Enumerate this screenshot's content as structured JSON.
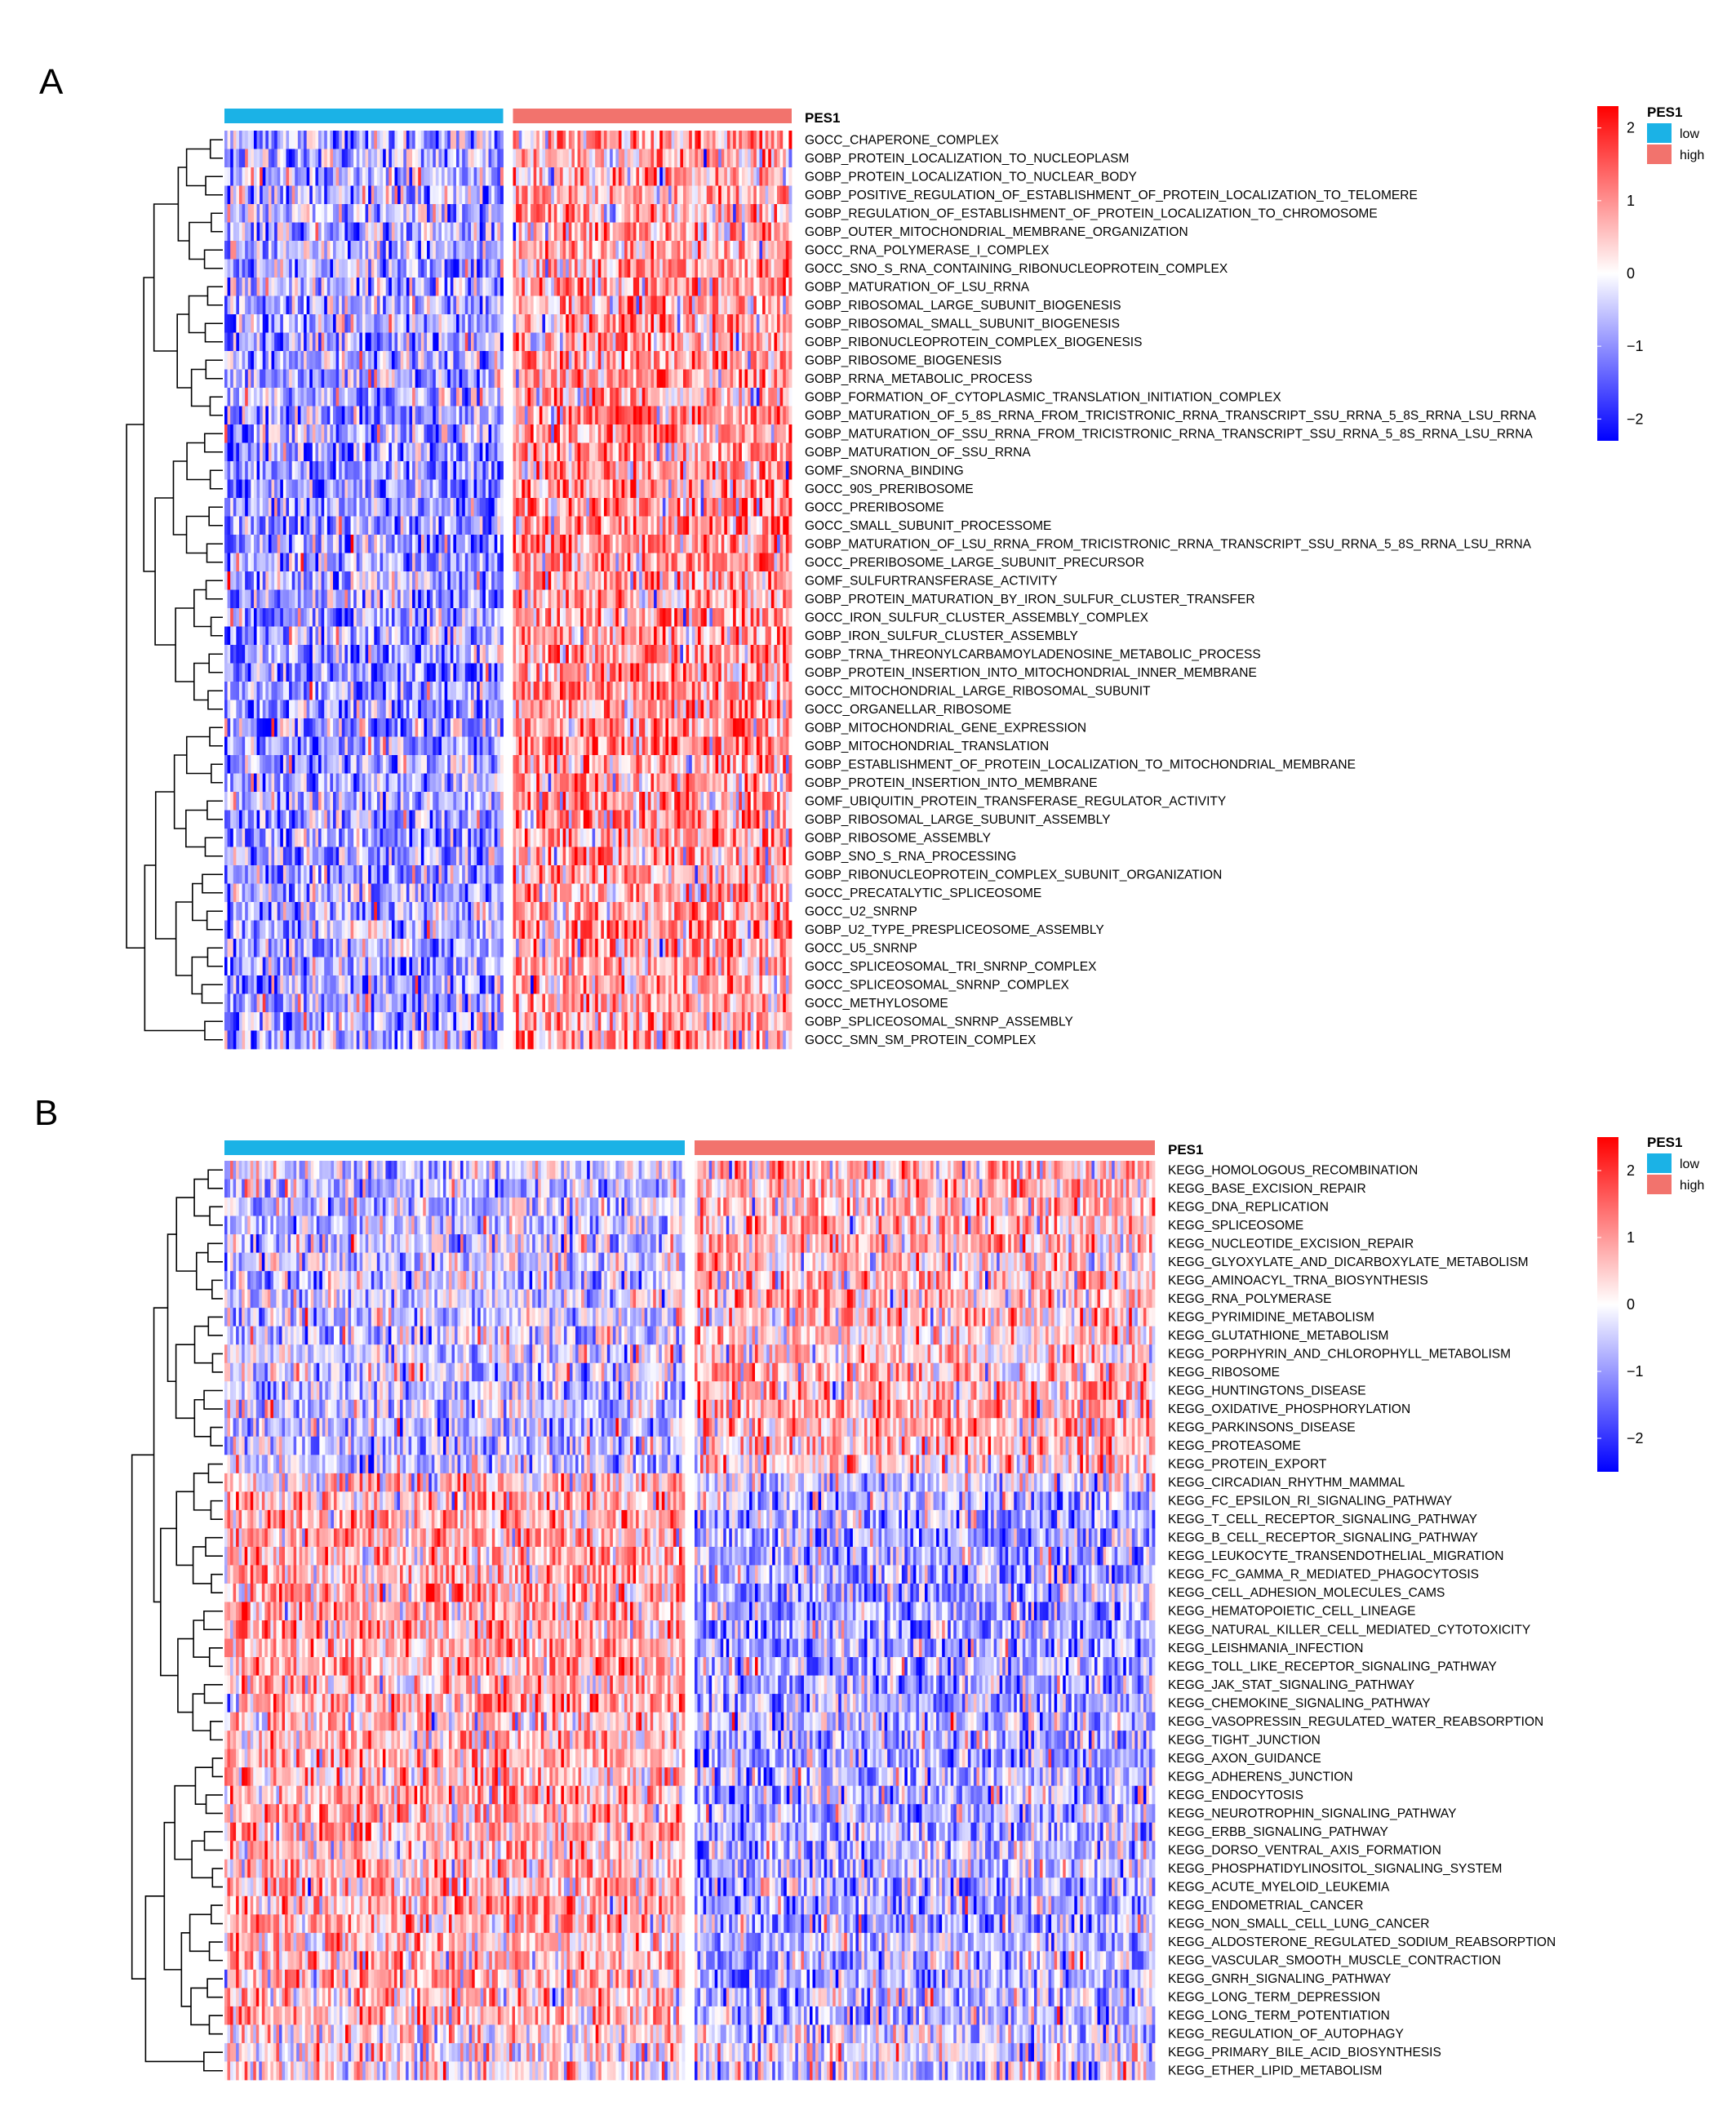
{
  "chart_data": [
    {
      "type": "heatmap",
      "panel_label": "A",
      "annotation_title": "PES1",
      "groups": [
        {
          "name": "low",
          "color": "#1bb2e6",
          "fraction": 0.5
        },
        {
          "name": "high",
          "color": "#f2736d",
          "fraction": 0.5
        }
      ],
      "legend": {
        "title": "PES1",
        "items": [
          "low",
          "high"
        ]
      },
      "color_scale": {
        "min": -2.3,
        "max": 2.3,
        "ticks": [
          2,
          1,
          0,
          -1,
          -2
        ],
        "low_color": "#0000ff",
        "mid_color": "#ffffff",
        "high_color": "#ff0000"
      },
      "rows": [
        {
          "label": "GOCC_CHAPERONE_COMPLEX",
          "low_mean": -0.45,
          "high_mean": 0.45
        },
        {
          "label": "GOBP_PROTEIN_LOCALIZATION_TO_NUCLEOPLASM",
          "low_mean": -0.45,
          "high_mean": 0.45
        },
        {
          "label": "GOBP_PROTEIN_LOCALIZATION_TO_NUCLEAR_BODY",
          "low_mean": -0.45,
          "high_mean": 0.45
        },
        {
          "label": "GOBP_POSITIVE_REGULATION_OF_ESTABLISHMENT_OF_PROTEIN_LOCALIZATION_TO_TELOMERE",
          "low_mean": -0.45,
          "high_mean": 0.45
        },
        {
          "label": "GOBP_REGULATION_OF_ESTABLISHMENT_OF_PROTEIN_LOCALIZATION_TO_CHROMOSOME",
          "low_mean": -0.45,
          "high_mean": 0.45
        },
        {
          "label": "GOBP_OUTER_MITOCHONDRIAL_MEMBRANE_ORGANIZATION",
          "low_mean": -0.4,
          "high_mean": 0.4
        },
        {
          "label": "GOCC_RNA_POLYMERASE_I_COMPLEX",
          "low_mean": -0.5,
          "high_mean": 0.5
        },
        {
          "label": "GOCC_SNO_S_RNA_CONTAINING_RIBONUCLEOPROTEIN_COMPLEX",
          "low_mean": -0.5,
          "high_mean": 0.5
        },
        {
          "label": "GOBP_MATURATION_OF_LSU_RRNA",
          "low_mean": -0.5,
          "high_mean": 0.5
        },
        {
          "label": "GOBP_RIBOSOMAL_LARGE_SUBUNIT_BIOGENESIS",
          "low_mean": -0.5,
          "high_mean": 0.5
        },
        {
          "label": "GOBP_RIBOSOMAL_SMALL_SUBUNIT_BIOGENESIS",
          "low_mean": -0.5,
          "high_mean": 0.5
        },
        {
          "label": "GOBP_RIBONUCLEOPROTEIN_COMPLEX_BIOGENESIS",
          "low_mean": -0.5,
          "high_mean": 0.5
        },
        {
          "label": "GOBP_RIBOSOME_BIOGENESIS",
          "low_mean": -0.5,
          "high_mean": 0.5
        },
        {
          "label": "GOBP_RRNA_METABOLIC_PROCESS",
          "low_mean": -0.5,
          "high_mean": 0.5
        },
        {
          "label": "GOBP_FORMATION_OF_CYTOPLASMIC_TRANSLATION_INITIATION_COMPLEX",
          "low_mean": -0.45,
          "high_mean": 0.45
        },
        {
          "label": "GOBP_MATURATION_OF_5_8S_RRNA_FROM_TRICISTRONIC_RRNA_TRANSCRIPT_SSU_RRNA_5_8S_RRNA_LSU_RRNA",
          "low_mean": -0.6,
          "high_mean": 0.6
        },
        {
          "label": "GOBP_MATURATION_OF_SSU_RRNA_FROM_TRICISTRONIC_RRNA_TRANSCRIPT_SSU_RRNA_5_8S_RRNA_LSU_RRNA",
          "low_mean": -0.6,
          "high_mean": 0.6
        },
        {
          "label": "GOBP_MATURATION_OF_SSU_RRNA",
          "low_mean": -0.6,
          "high_mean": 0.6
        },
        {
          "label": "GOMF_SNORNA_BINDING",
          "low_mean": -0.6,
          "high_mean": 0.6
        },
        {
          "label": "GOCC_90S_PRERIBOSOME",
          "low_mean": -0.6,
          "high_mean": 0.6
        },
        {
          "label": "GOCC_PRERIBOSOME",
          "low_mean": -0.6,
          "high_mean": 0.6
        },
        {
          "label": "GOCC_SMALL_SUBUNIT_PROCESSOME",
          "low_mean": -0.6,
          "high_mean": 0.6
        },
        {
          "label": "GOBP_MATURATION_OF_LSU_RRNA_FROM_TRICISTRONIC_RRNA_TRANSCRIPT_SSU_RRNA_5_8S_RRNA_LSU_RRNA",
          "low_mean": -0.6,
          "high_mean": 0.6
        },
        {
          "label": "GOCC_PRERIBOSOME_LARGE_SUBUNIT_PRECURSOR",
          "low_mean": -0.6,
          "high_mean": 0.6
        },
        {
          "label": "GOMF_SULFURTRANSFERASE_ACTIVITY",
          "low_mean": -0.5,
          "high_mean": 0.5
        },
        {
          "label": "GOBP_PROTEIN_MATURATION_BY_IRON_SULFUR_CLUSTER_TRANSFER",
          "low_mean": -0.5,
          "high_mean": 0.5
        },
        {
          "label": "GOCC_IRON_SULFUR_CLUSTER_ASSEMBLY_COMPLEX",
          "low_mean": -0.5,
          "high_mean": 0.5
        },
        {
          "label": "GOBP_IRON_SULFUR_CLUSTER_ASSEMBLY",
          "low_mean": -0.5,
          "high_mean": 0.5
        },
        {
          "label": "GOBP_TRNA_THREONYLCARBAMOYLADENOSINE_METABOLIC_PROCESS",
          "low_mean": -0.55,
          "high_mean": 0.55
        },
        {
          "label": "GOBP_PROTEIN_INSERTION_INTO_MITOCHONDRIAL_INNER_MEMBRANE",
          "low_mean": -0.6,
          "high_mean": 0.6
        },
        {
          "label": "GOCC_MITOCHONDRIAL_LARGE_RIBOSOMAL_SUBUNIT",
          "low_mean": -0.65,
          "high_mean": 0.65
        },
        {
          "label": "GOCC_ORGANELLAR_RIBOSOME",
          "low_mean": -0.65,
          "high_mean": 0.65
        },
        {
          "label": "GOBP_MITOCHONDRIAL_GENE_EXPRESSION",
          "low_mean": -0.65,
          "high_mean": 0.65
        },
        {
          "label": "GOBP_MITOCHONDRIAL_TRANSLATION",
          "low_mean": -0.65,
          "high_mean": 0.65
        },
        {
          "label": "GOBP_ESTABLISHMENT_OF_PROTEIN_LOCALIZATION_TO_MITOCHONDRIAL_MEMBRANE",
          "low_mean": -0.55,
          "high_mean": 0.55
        },
        {
          "label": "GOBP_PROTEIN_INSERTION_INTO_MEMBRANE",
          "low_mean": -0.5,
          "high_mean": 0.5
        },
        {
          "label": "GOMF_UBIQUITIN_PROTEIN_TRANSFERASE_REGULATOR_ACTIVITY",
          "low_mean": -0.45,
          "high_mean": 0.45
        },
        {
          "label": "GOBP_RIBOSOMAL_LARGE_SUBUNIT_ASSEMBLY",
          "low_mean": -0.55,
          "high_mean": 0.55
        },
        {
          "label": "GOBP_RIBOSOME_ASSEMBLY",
          "low_mean": -0.55,
          "high_mean": 0.55
        },
        {
          "label": "GOBP_SNO_S_RNA_PROCESSING",
          "low_mean": -0.5,
          "high_mean": 0.5
        },
        {
          "label": "GOBP_RIBONUCLEOPROTEIN_COMPLEX_SUBUNIT_ORGANIZATION",
          "low_mean": -0.5,
          "high_mean": 0.5
        },
        {
          "label": "GOCC_PRECATALYTIC_SPLICEOSOME",
          "low_mean": -0.5,
          "high_mean": 0.5
        },
        {
          "label": "GOCC_U2_SNRNP",
          "low_mean": -0.5,
          "high_mean": 0.5
        },
        {
          "label": "GOBP_U2_TYPE_PRESPLICEOSOME_ASSEMBLY",
          "low_mean": -0.5,
          "high_mean": 0.5
        },
        {
          "label": "GOCC_U5_SNRNP",
          "low_mean": -0.5,
          "high_mean": 0.5
        },
        {
          "label": "GOCC_SPLICEOSOMAL_TRI_SNRNP_COMPLEX",
          "low_mean": -0.5,
          "high_mean": 0.5
        },
        {
          "label": "GOCC_SPLICEOSOMAL_SNRNP_COMPLEX",
          "low_mean": -0.5,
          "high_mean": 0.5
        },
        {
          "label": "GOCC_METHYLOSOME",
          "low_mean": -0.45,
          "high_mean": 0.45
        },
        {
          "label": "GOBP_SPLICEOSOMAL_SNRNP_ASSEMBLY",
          "low_mean": -0.45,
          "high_mean": 0.45
        },
        {
          "label": "GOCC_SMN_SM_PROTEIN_COMPLEX",
          "low_mean": -0.45,
          "high_mean": 0.45
        }
      ]
    },
    {
      "type": "heatmap",
      "panel_label": "B",
      "annotation_title": "PES1",
      "groups": [
        {
          "name": "low",
          "color": "#1bb2e6",
          "fraction": 0.5
        },
        {
          "name": "high",
          "color": "#f2736d",
          "fraction": 0.5
        }
      ],
      "legend": {
        "title": "PES1",
        "items": [
          "low",
          "high"
        ]
      },
      "color_scale": {
        "min": -2.5,
        "max": 2.5,
        "ticks": [
          2,
          1,
          0,
          -1,
          -2
        ],
        "low_color": "#0000ff",
        "mid_color": "#ffffff",
        "high_color": "#ff0000"
      },
      "rows": [
        {
          "label": "KEGG_HOMOLOGOUS_RECOMBINATION",
          "low_mean": -0.35,
          "high_mean": 0.4
        },
        {
          "label": "KEGG_BASE_EXCISION_REPAIR",
          "low_mean": -0.35,
          "high_mean": 0.4
        },
        {
          "label": "KEGG_DNA_REPLICATION",
          "low_mean": -0.35,
          "high_mean": 0.4
        },
        {
          "label": "KEGG_SPLICEOSOME",
          "low_mean": -0.35,
          "high_mean": 0.4
        },
        {
          "label": "KEGG_NUCLEOTIDE_EXCISION_REPAIR",
          "low_mean": -0.3,
          "high_mean": 0.35
        },
        {
          "label": "KEGG_GLYOXYLATE_AND_DICARBOXYLATE_METABOLISM",
          "low_mean": -0.25,
          "high_mean": 0.3
        },
        {
          "label": "KEGG_AMINOACYL_TRNA_BIOSYNTHESIS",
          "low_mean": -0.3,
          "high_mean": 0.35
        },
        {
          "label": "KEGG_RNA_POLYMERASE",
          "low_mean": -0.3,
          "high_mean": 0.35
        },
        {
          "label": "KEGG_PYRIMIDINE_METABOLISM",
          "low_mean": -0.3,
          "high_mean": 0.35
        },
        {
          "label": "KEGG_GLUTATHIONE_METABOLISM",
          "low_mean": -0.25,
          "high_mean": 0.3
        },
        {
          "label": "KEGG_PORPHYRIN_AND_CHLOROPHYLL_METABOLISM",
          "low_mean": -0.25,
          "high_mean": 0.3
        },
        {
          "label": "KEGG_RIBOSOME",
          "low_mean": -0.35,
          "high_mean": 0.45
        },
        {
          "label": "KEGG_HUNTINGTONS_DISEASE",
          "low_mean": -0.35,
          "high_mean": 0.45
        },
        {
          "label": "KEGG_OXIDATIVE_PHOSPHORYLATION",
          "low_mean": -0.4,
          "high_mean": 0.5
        },
        {
          "label": "KEGG_PARKINSONS_DISEASE",
          "low_mean": -0.4,
          "high_mean": 0.5
        },
        {
          "label": "KEGG_PROTEASOME",
          "low_mean": -0.35,
          "high_mean": 0.4
        },
        {
          "label": "KEGG_PROTEIN_EXPORT",
          "low_mean": -0.3,
          "high_mean": 0.35
        },
        {
          "label": "KEGG_CIRCADIAN_RHYTHM_MAMMAL",
          "low_mean": 0.25,
          "high_mean": -0.3
        },
        {
          "label": "KEGG_FC_EPSILON_RI_SIGNALING_PATHWAY",
          "low_mean": 0.45,
          "high_mean": -0.5
        },
        {
          "label": "KEGG_T_CELL_RECEPTOR_SIGNALING_PATHWAY",
          "low_mean": 0.5,
          "high_mean": -0.55
        },
        {
          "label": "KEGG_B_CELL_RECEPTOR_SIGNALING_PATHWAY",
          "low_mean": 0.5,
          "high_mean": -0.55
        },
        {
          "label": "KEGG_LEUKOCYTE_TRANSENDOTHELIAL_MIGRATION",
          "low_mean": 0.5,
          "high_mean": -0.55
        },
        {
          "label": "KEGG_FC_GAMMA_R_MEDIATED_PHAGOCYTOSIS",
          "low_mean": 0.5,
          "high_mean": -0.55
        },
        {
          "label": "KEGG_CELL_ADHESION_MOLECULES_CAMS",
          "low_mean": 0.55,
          "high_mean": -0.6
        },
        {
          "label": "KEGG_HEMATOPOIETIC_CELL_LINEAGE",
          "low_mean": 0.55,
          "high_mean": -0.6
        },
        {
          "label": "KEGG_NATURAL_KILLER_CELL_MEDIATED_CYTOTOXICITY",
          "low_mean": 0.55,
          "high_mean": -0.6
        },
        {
          "label": "KEGG_LEISHMANIA_INFECTION",
          "low_mean": 0.55,
          "high_mean": -0.6
        },
        {
          "label": "KEGG_TOLL_LIKE_RECEPTOR_SIGNALING_PATHWAY",
          "low_mean": 0.55,
          "high_mean": -0.6
        },
        {
          "label": "KEGG_JAK_STAT_SIGNALING_PATHWAY",
          "low_mean": 0.5,
          "high_mean": -0.55
        },
        {
          "label": "KEGG_CHEMOKINE_SIGNALING_PATHWAY",
          "low_mean": 0.55,
          "high_mean": -0.6
        },
        {
          "label": "KEGG_VASOPRESSIN_REGULATED_WATER_REABSORPTION",
          "low_mean": 0.3,
          "high_mean": -0.35
        },
        {
          "label": "KEGG_TIGHT_JUNCTION",
          "low_mean": 0.4,
          "high_mean": -0.45
        },
        {
          "label": "KEGG_AXON_GUIDANCE",
          "low_mean": 0.45,
          "high_mean": -0.5
        },
        {
          "label": "KEGG_ADHERENS_JUNCTION",
          "low_mean": 0.45,
          "high_mean": -0.5
        },
        {
          "label": "KEGG_ENDOCYTOSIS",
          "low_mean": 0.45,
          "high_mean": -0.5
        },
        {
          "label": "KEGG_NEUROTROPHIN_SIGNALING_PATHWAY",
          "low_mean": 0.45,
          "high_mean": -0.5
        },
        {
          "label": "KEGG_ERBB_SIGNALING_PATHWAY",
          "low_mean": 0.45,
          "high_mean": -0.5
        },
        {
          "label": "KEGG_DORSO_VENTRAL_AXIS_FORMATION",
          "low_mean": 0.35,
          "high_mean": -0.4
        },
        {
          "label": "KEGG_PHOSPHATIDYLINOSITOL_SIGNALING_SYSTEM",
          "low_mean": 0.4,
          "high_mean": -0.45
        },
        {
          "label": "KEGG_ACUTE_MYELOID_LEUKEMIA",
          "low_mean": 0.45,
          "high_mean": -0.5
        },
        {
          "label": "KEGG_ENDOMETRIAL_CANCER",
          "low_mean": 0.45,
          "high_mean": -0.5
        },
        {
          "label": "KEGG_NON_SMALL_CELL_LUNG_CANCER",
          "low_mean": 0.45,
          "high_mean": -0.5
        },
        {
          "label": "KEGG_ALDOSTERONE_REGULATED_SODIUM_REABSORPTION",
          "low_mean": 0.35,
          "high_mean": -0.4
        },
        {
          "label": "KEGG_VASCULAR_SMOOTH_MUSCLE_CONTRACTION",
          "low_mean": 0.4,
          "high_mean": -0.45
        },
        {
          "label": "KEGG_GNRH_SIGNALING_PATHWAY",
          "low_mean": 0.4,
          "high_mean": -0.45
        },
        {
          "label": "KEGG_LONG_TERM_DEPRESSION",
          "low_mean": 0.4,
          "high_mean": -0.45
        },
        {
          "label": "KEGG_LONG_TERM_POTENTIATION",
          "low_mean": 0.4,
          "high_mean": -0.45
        },
        {
          "label": "KEGG_REGULATION_OF_AUTOPHAGY",
          "low_mean": 0.2,
          "high_mean": -0.2
        },
        {
          "label": "KEGG_PRIMARY_BILE_ACID_BIOSYNTHESIS",
          "low_mean": 0.1,
          "high_mean": -0.1
        },
        {
          "label": "KEGG_ETHER_LIPID_METABOLISM",
          "low_mean": 0.2,
          "high_mean": -0.2
        }
      ]
    }
  ]
}
